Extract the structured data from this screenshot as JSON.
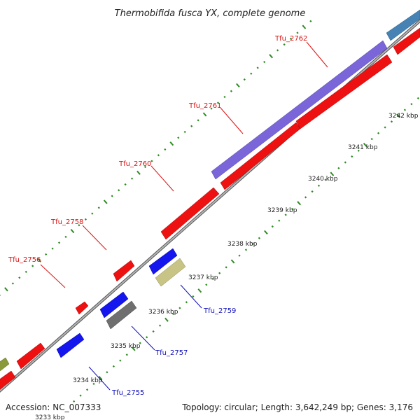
{
  "title": "Thermobifida fusca YX, complete genome",
  "footer": {
    "accession": "Accession: NC_007333",
    "summary": "Topology: circular; Length: 3,642,249 bp; Genes: 3,176"
  },
  "colors": {
    "backbone": "#8a8a8a",
    "tick_dot": "#2e8b22",
    "forward_label": "#dd1111",
    "reverse_label": "#1111bb",
    "red_gene": "#ee1111",
    "blue_gene": "#1515ee",
    "purple_gene": "#7a66d8",
    "steelblue_gene": "#4682b4",
    "olive_gene": "#8a9a3a",
    "khaki_gene": "#c8c486",
    "gray_gene": "#6f6f6f"
  },
  "tick_labels": [
    "3233 kbp",
    "3234 kbp",
    "3235 kbp",
    "3236 kbp",
    "3237 kbp",
    "3238 kbp",
    "3239 kbp",
    "3240 kbp",
    "3241 kbp",
    "3242 kbp"
  ],
  "gene_labels": {
    "forward": [
      "Tfu_2756",
      "Tfu_2758",
      "Tfu_2760",
      "Tfu_2761",
      "Tfu_2762"
    ],
    "reverse": [
      "Tfu_2755",
      "Tfu_2757",
      "Tfu_2759"
    ]
  }
}
